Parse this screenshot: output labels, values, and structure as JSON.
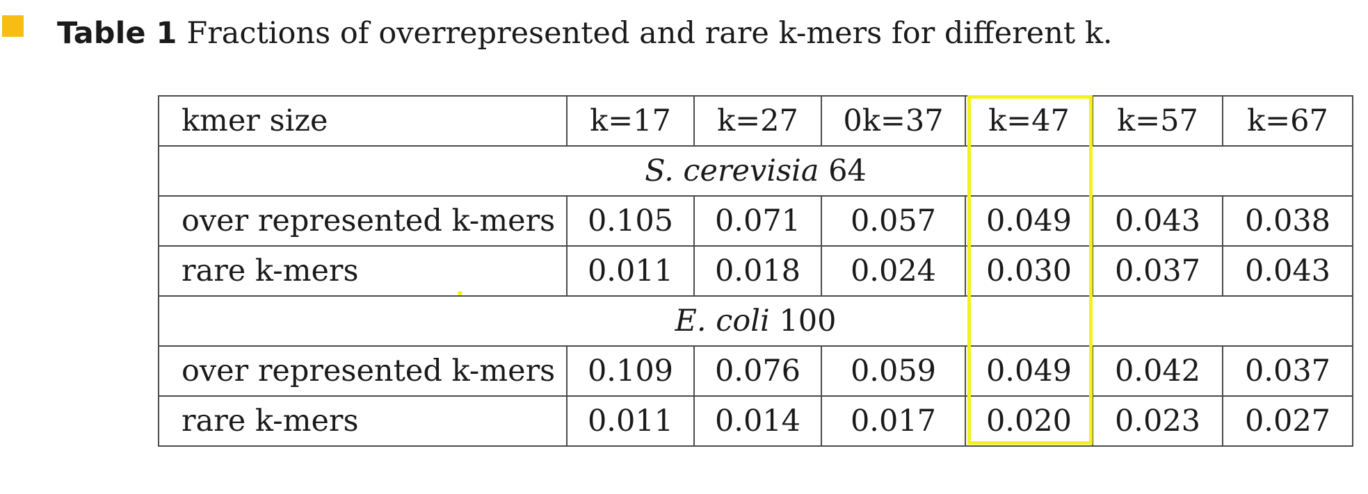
{
  "caption": {
    "label": "Table 1",
    "text": "Fractions of overrepresented and rare k-mers for different k."
  },
  "table": {
    "header": [
      "kmer size",
      "k=17",
      "k=27",
      "0k=37",
      "k=47",
      "k=57",
      "k=67"
    ],
    "sections": [
      {
        "species": "S. cerevisia",
        "number": "64",
        "rows": [
          {
            "label": "over represented k-mers",
            "values": [
              "0.105",
              "0.071",
              "0.057",
              "0.049",
              "0.043",
              "0.038"
            ]
          },
          {
            "label": "rare k-mers",
            "values": [
              "0.011",
              "0.018",
              "0.024",
              "0.030",
              "0.037",
              "0.043"
            ]
          }
        ]
      },
      {
        "species": "E. coli",
        "number": "100",
        "rows": [
          {
            "label": "over represented k-mers",
            "values": [
              "0.109",
              "0.076",
              "0.059",
              "0.049",
              "0.042",
              "0.037"
            ]
          },
          {
            "label": "rare k-mers",
            "values": [
              "0.011",
              "0.014",
              "0.017",
              "0.020",
              "0.023",
              "0.027"
            ]
          }
        ]
      }
    ]
  },
  "annotations": {
    "highlight_color": "#f2f21a",
    "highlight_column": "k=47",
    "marker_color": "#f7bd14"
  }
}
